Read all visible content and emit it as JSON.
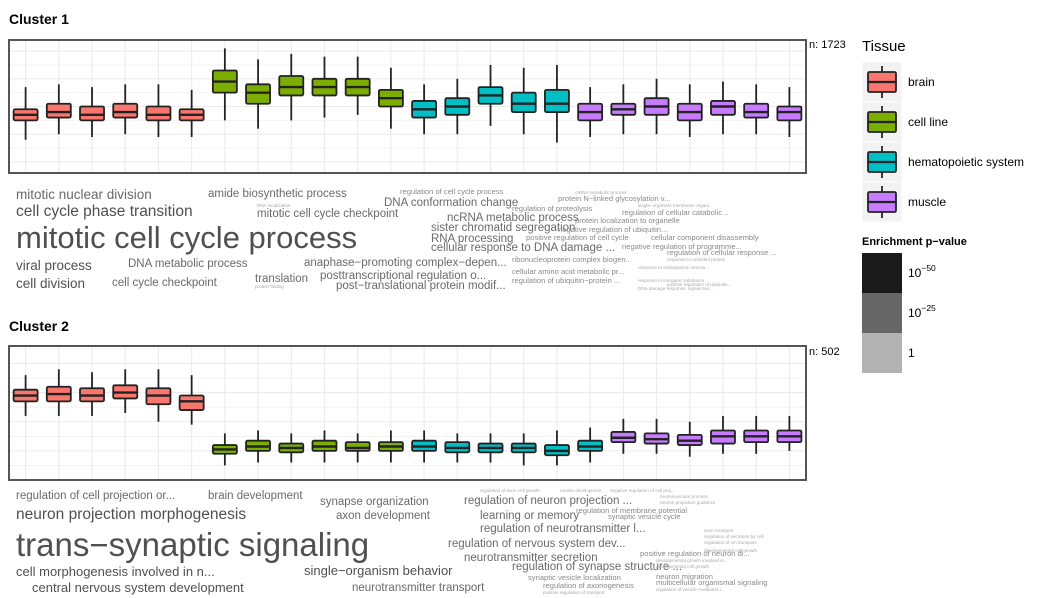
{
  "colors": {
    "brain": "#f8766d",
    "cell line": "#7cae00",
    "hematopoietic system": "#00bfc4",
    "muscle": "#c77cff"
  },
  "legend": {
    "tissue_title": "Tissue",
    "tissues": [
      "brain",
      "cell line",
      "hematopoietic system",
      "muscle"
    ],
    "pvalue_title": "Enrichment p−value",
    "pvalue_colors": [
      "#1a1a1a",
      "#666666",
      "#b3b3b3"
    ],
    "pvalue_labels": [
      {
        "base": "10",
        "exp": "−50"
      },
      {
        "base": "10",
        "exp": "−25"
      },
      {
        "base": "1",
        "exp": ""
      }
    ]
  },
  "chart_data": [
    {
      "type": "box",
      "title": "Cluster 1",
      "n_label": "n: 1723",
      "ylim": [
        -2.4,
        2.4
      ],
      "boxes": [
        {
          "tissue": "brain",
          "min": -1.2,
          "q1": -0.5,
          "median": -0.3,
          "q3": -0.1,
          "max": 0.7
        },
        {
          "tissue": "brain",
          "min": -1.0,
          "q1": -0.4,
          "median": -0.2,
          "q3": 0.1,
          "max": 0.8
        },
        {
          "tissue": "brain",
          "min": -1.1,
          "q1": -0.5,
          "median": -0.3,
          "q3": 0.0,
          "max": 0.7
        },
        {
          "tissue": "brain",
          "min": -1.0,
          "q1": -0.4,
          "median": -0.2,
          "q3": 0.1,
          "max": 0.8
        },
        {
          "tissue": "brain",
          "min": -1.1,
          "q1": -0.5,
          "median": -0.3,
          "q3": 0.0,
          "max": 0.8
        },
        {
          "tissue": "brain",
          "min": -1.1,
          "q1": -0.5,
          "median": -0.3,
          "q3": -0.1,
          "max": 0.6
        },
        {
          "tissue": "cell line",
          "min": -0.5,
          "q1": 0.5,
          "median": 0.9,
          "q3": 1.3,
          "max": 2.1
        },
        {
          "tissue": "cell line",
          "min": -0.8,
          "q1": 0.1,
          "median": 0.5,
          "q3": 0.8,
          "max": 1.7
        },
        {
          "tissue": "cell line",
          "min": -0.5,
          "q1": 0.4,
          "median": 0.7,
          "q3": 1.1,
          "max": 1.9
        },
        {
          "tissue": "cell line",
          "min": -0.4,
          "q1": 0.4,
          "median": 0.7,
          "q3": 1.0,
          "max": 1.8
        },
        {
          "tissue": "cell line",
          "min": -0.3,
          "q1": 0.4,
          "median": 0.7,
          "q3": 1.0,
          "max": 1.8
        },
        {
          "tissue": "cell line",
          "min": -0.8,
          "q1": 0.0,
          "median": 0.3,
          "q3": 0.6,
          "max": 1.4
        },
        {
          "tissue": "hematopoietic system",
          "min": -1.0,
          "q1": -0.4,
          "median": -0.1,
          "q3": 0.2,
          "max": 0.8
        },
        {
          "tissue": "hematopoietic system",
          "min": -1.0,
          "q1": -0.3,
          "median": 0.0,
          "q3": 0.3,
          "max": 1.0
        },
        {
          "tissue": "hematopoietic system",
          "min": -0.7,
          "q1": 0.1,
          "median": 0.4,
          "q3": 0.7,
          "max": 1.5
        },
        {
          "tissue": "hematopoietic system",
          "min": -1.0,
          "q1": -0.2,
          "median": 0.1,
          "q3": 0.5,
          "max": 1.4
        },
        {
          "tissue": "hematopoietic system",
          "min": -1.3,
          "q1": -0.2,
          "median": 0.1,
          "q3": 0.6,
          "max": 1.5
        },
        {
          "tissue": "muscle",
          "min": -1.1,
          "q1": -0.5,
          "median": -0.2,
          "q3": 0.1,
          "max": 0.7
        },
        {
          "tissue": "muscle",
          "min": -1.0,
          "q1": -0.3,
          "median": -0.1,
          "q3": 0.1,
          "max": 0.8
        },
        {
          "tissue": "muscle",
          "min": -1.0,
          "q1": -0.3,
          "median": 0.0,
          "q3": 0.3,
          "max": 1.0
        },
        {
          "tissue": "muscle",
          "min": -1.1,
          "q1": -0.5,
          "median": -0.2,
          "q3": 0.1,
          "max": 0.8
        },
        {
          "tissue": "muscle",
          "min": -1.0,
          "q1": -0.3,
          "median": 0.0,
          "q3": 0.2,
          "max": 0.9
        },
        {
          "tissue": "muscle",
          "min": -1.0,
          "q1": -0.4,
          "median": -0.2,
          "q3": 0.1,
          "max": 0.8
        },
        {
          "tissue": "muscle",
          "min": -1.1,
          "q1": -0.5,
          "median": -0.2,
          "q3": 0.0,
          "max": 0.7
        }
      ],
      "wordcloud": [
        {
          "text": "mitotic nuclear division",
          "p": 1
        },
        {
          "text": "amide biosynthetic process",
          "p": 1
        },
        {
          "text": "regulation of cell cycle process",
          "p": 2
        },
        {
          "text": "mRNA metabolic process",
          "p": 3
        },
        {
          "text": "cell cycle phase transition",
          "p": 0
        },
        {
          "text": "RNA localization",
          "p": 3
        },
        {
          "text": "DNA conformation change",
          "p": 1
        },
        {
          "text": "protein N−linked glycosylation v...",
          "p": 2
        },
        {
          "text": "regulation of proteolysis",
          "p": 2
        },
        {
          "text": "single−organism membrane organi...",
          "p": 3
        },
        {
          "text": "mitotic cell cycle checkpoint",
          "p": 1
        },
        {
          "text": "regulation of cellular catabolic...",
          "p": 2
        },
        {
          "text": "ncRNA metabolic process",
          "p": 1
        },
        {
          "text": "protein localization to organelle",
          "p": 2
        },
        {
          "text": "sister chromatid segregation",
          "p": 1
        },
        {
          "text": "negative regulation of ubiquitin...",
          "p": 2
        },
        {
          "text": "mitotic cell cycle process",
          "p": 0
        },
        {
          "text": "RNA processing",
          "p": 1
        },
        {
          "text": "positive regulation of cell cycle",
          "p": 2
        },
        {
          "text": "cellular component disassembly",
          "p": 2
        },
        {
          "text": "cellular response to DNA damage ...",
          "p": 1
        },
        {
          "text": "negative regulation of programme...",
          "p": 2
        },
        {
          "text": "regulation of cellular response ...",
          "p": 2
        },
        {
          "text": "viral process",
          "p": 0
        },
        {
          "text": "DNA metabolic process",
          "p": 1
        },
        {
          "text": "anaphase−promoting complex−depen...",
          "p": 1
        },
        {
          "text": "ribonucleoprotein complex biogen...",
          "p": 2
        },
        {
          "text": "response to unfolded protein",
          "p": 3
        },
        {
          "text": "response to endoplasmic reticulu...",
          "p": 3
        },
        {
          "text": "posttranscriptional regulation o...",
          "p": 1
        },
        {
          "text": "cellular amino acid metabolic pr...",
          "p": 2
        },
        {
          "text": "response to inorganic substance",
          "p": 3
        },
        {
          "text": "translation",
          "p": 1
        },
        {
          "text": "cell division",
          "p": 0
        },
        {
          "text": "cell cycle checkpoint",
          "p": 1
        },
        {
          "text": "regulation of ubiquitin−protein ...",
          "p": 2
        },
        {
          "text": "positive regulation of ubiquitin...",
          "p": 3
        },
        {
          "text": "protein folding",
          "p": 3
        },
        {
          "text": "post−translational protein modif...",
          "p": 1
        },
        {
          "text": "DNA damage response, signal tran...",
          "p": 3
        }
      ]
    },
    {
      "type": "box",
      "title": "Cluster 2",
      "n_label": "n: 502",
      "ylim": [
        -2.0,
        2.6
      ],
      "boxes": [
        {
          "tissue": "brain",
          "min": 0.2,
          "q1": 0.7,
          "median": 0.9,
          "q3": 1.1,
          "max": 1.6
        },
        {
          "tissue": "brain",
          "min": 0.2,
          "q1": 0.7,
          "median": 0.95,
          "q3": 1.2,
          "max": 1.8
        },
        {
          "tissue": "brain",
          "min": 0.2,
          "q1": 0.7,
          "median": 0.9,
          "q3": 1.15,
          "max": 1.7
        },
        {
          "tissue": "brain",
          "min": 0.3,
          "q1": 0.8,
          "median": 1.0,
          "q3": 1.25,
          "max": 1.8
        },
        {
          "tissue": "brain",
          "min": 0.0,
          "q1": 0.6,
          "median": 0.9,
          "q3": 1.15,
          "max": 1.8
        },
        {
          "tissue": "brain",
          "min": -0.1,
          "q1": 0.4,
          "median": 0.7,
          "q3": 0.9,
          "max": 1.6
        },
        {
          "tissue": "cell line",
          "min": -1.5,
          "q1": -1.1,
          "median": -0.95,
          "q3": -0.8,
          "max": -0.4
        },
        {
          "tissue": "cell line",
          "min": -1.4,
          "q1": -1.0,
          "median": -0.85,
          "q3": -0.65,
          "max": -0.3
        },
        {
          "tissue": "cell line",
          "min": -1.4,
          "q1": -1.05,
          "median": -0.9,
          "q3": -0.75,
          "max": -0.4
        },
        {
          "tissue": "cell line",
          "min": -1.4,
          "q1": -1.0,
          "median": -0.85,
          "q3": -0.65,
          "max": -0.3
        },
        {
          "tissue": "cell line",
          "min": -1.4,
          "q1": -1.0,
          "median": -0.9,
          "q3": -0.7,
          "max": -0.4
        },
        {
          "tissue": "cell line",
          "min": -1.4,
          "q1": -1.0,
          "median": -0.85,
          "q3": -0.7,
          "max": -0.3
        },
        {
          "tissue": "hematopoietic system",
          "min": -1.4,
          "q1": -1.0,
          "median": -0.85,
          "q3": -0.65,
          "max": -0.3
        },
        {
          "tissue": "hematopoietic system",
          "min": -1.4,
          "q1": -1.05,
          "median": -0.9,
          "q3": -0.7,
          "max": -0.4
        },
        {
          "tissue": "hematopoietic system",
          "min": -1.4,
          "q1": -1.05,
          "median": -0.9,
          "q3": -0.75,
          "max": -0.4
        },
        {
          "tissue": "hematopoietic system",
          "min": -1.5,
          "q1": -1.05,
          "median": -0.9,
          "q3": -0.75,
          "max": -0.4
        },
        {
          "tissue": "hematopoietic system",
          "min": -1.5,
          "q1": -1.15,
          "median": -1.0,
          "q3": -0.8,
          "max": -0.3
        },
        {
          "tissue": "hematopoietic system",
          "min": -1.4,
          "q1": -1.0,
          "median": -0.85,
          "q3": -0.65,
          "max": -0.2
        },
        {
          "tissue": "muscle",
          "min": -1.1,
          "q1": -0.7,
          "median": -0.55,
          "q3": -0.35,
          "max": 0.1
        },
        {
          "tissue": "muscle",
          "min": -1.1,
          "q1": -0.75,
          "median": -0.6,
          "q3": -0.4,
          "max": 0.1
        },
        {
          "tissue": "muscle",
          "min": -1.2,
          "q1": -0.8,
          "median": -0.65,
          "q3": -0.45,
          "max": 0.0
        },
        {
          "tissue": "muscle",
          "min": -1.1,
          "q1": -0.75,
          "median": -0.5,
          "q3": -0.3,
          "max": 0.2
        },
        {
          "tissue": "muscle",
          "min": -1.1,
          "q1": -0.7,
          "median": -0.5,
          "q3": -0.3,
          "max": 0.2
        },
        {
          "tissue": "muscle",
          "min": -1.0,
          "q1": -0.7,
          "median": -0.5,
          "q3": -0.3,
          "max": 0.2
        }
      ],
      "wordcloud": [
        {
          "text": "regulation of cell projection or...",
          "p": 1
        },
        {
          "text": "brain development",
          "p": 1
        },
        {
          "text": "regulation of axon cell growth",
          "p": 3
        },
        {
          "text": "neurite development",
          "p": 3
        },
        {
          "text": "negative regulation of cell proj...",
          "p": 3
        },
        {
          "text": "synapse organization",
          "p": 1
        },
        {
          "text": "regulation of neuron projection ...",
          "p": 1
        },
        {
          "text": "neuromuscular process",
          "p": 3
        },
        {
          "text": "neuron projection guidance",
          "p": 3
        },
        {
          "text": "neuron projection morphogenesis",
          "p": 0
        },
        {
          "text": "regulation of membrane potential",
          "p": 2
        },
        {
          "text": "learning or memory",
          "p": 1
        },
        {
          "text": "synaptic vesicle cycle",
          "p": 2
        },
        {
          "text": "axon development",
          "p": 1
        },
        {
          "text": "axon transport",
          "p": 3
        },
        {
          "text": "regulation of neurotransmitter l...",
          "p": 1
        },
        {
          "text": "regulation of secretion by cell",
          "p": 3
        },
        {
          "text": "regulation of ion transport",
          "p": 3
        },
        {
          "text": "trans−synaptic signaling",
          "p": 0
        },
        {
          "text": "regulation of nervous system dev...",
          "p": 1
        },
        {
          "text": "developmental cell growth",
          "p": 3
        },
        {
          "text": "neurotransmitter secretion",
          "p": 1
        },
        {
          "text": "positive regulation of neuron di...",
          "p": 2
        },
        {
          "text": "developmental growth involved in...",
          "p": 3
        },
        {
          "text": "regulation of synapse structure ...",
          "p": 1
        },
        {
          "text": "developmental cell growth",
          "p": 3
        },
        {
          "text": "cell morphogenesis involved in n...",
          "p": 0
        },
        {
          "text": "single−organism behavior",
          "p": 0
        },
        {
          "text": "synaptic vesicle localization",
          "p": 2
        },
        {
          "text": "neuron migration",
          "p": 2
        },
        {
          "text": "regulation of axonogenesis",
          "p": 2
        },
        {
          "text": "multicellular organismal signaling",
          "p": 2
        },
        {
          "text": "central nervous system development",
          "p": 0
        },
        {
          "text": "neurotransmitter transport",
          "p": 1
        },
        {
          "text": "positive regulation of transport",
          "p": 3
        },
        {
          "text": "regulation of vesicle−mediated t...",
          "p": 3
        }
      ]
    }
  ]
}
